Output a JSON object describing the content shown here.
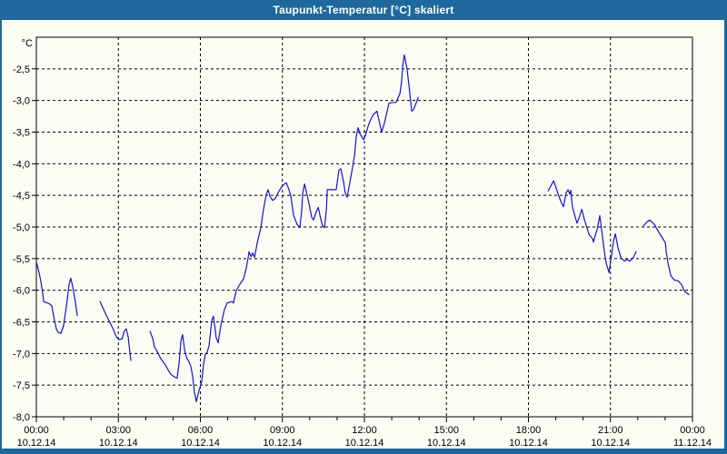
{
  "window": {
    "title": "Taupunkt-Temperatur [°C] skaliert"
  },
  "colors": {
    "titlebar": "#1e689e",
    "frame": "#1e689e",
    "background": "#fbfcf3",
    "line": "#1414cc",
    "grid": "#000000",
    "axis": "#000000",
    "text": "#000000"
  },
  "chart_data": {
    "type": "line",
    "title": "Taupunkt-Temperatur [°C] skaliert",
    "grid": "dashed",
    "legend": "none",
    "y_axis": {
      "unit": "°C",
      "min": -8.0,
      "max": -2.0,
      "ticks": [
        {
          "value": -2.5,
          "label": "-2,5"
        },
        {
          "value": -3.0,
          "label": "-3,0"
        },
        {
          "value": -3.5,
          "label": "-3,5"
        },
        {
          "value": -4.0,
          "label": "-4,0"
        },
        {
          "value": -4.5,
          "label": "-4,5"
        },
        {
          "value": -5.0,
          "label": "-5,0"
        },
        {
          "value": -5.5,
          "label": "-5,5"
        },
        {
          "value": -6.0,
          "label": "-6,0"
        },
        {
          "value": -6.5,
          "label": "-6,5"
        },
        {
          "value": -7.0,
          "label": "-7,0"
        },
        {
          "value": -7.5,
          "label": "-7,5"
        },
        {
          "value": -8.0,
          "label": "-8,0"
        }
      ]
    },
    "x_axis": {
      "range_hours": [
        0,
        24
      ],
      "minor_tick_hours": 1,
      "major_ticks": [
        {
          "hour": 0,
          "time": "00:00",
          "date": "10.12.14"
        },
        {
          "hour": 3,
          "time": "03:00",
          "date": "10.12.14"
        },
        {
          "hour": 6,
          "time": "06:00",
          "date": "10.12.14"
        },
        {
          "hour": 9,
          "time": "09:00",
          "date": "10.12.14"
        },
        {
          "hour": 12,
          "time": "12:00",
          "date": "10.12.14"
        },
        {
          "hour": 15,
          "time": "15:00",
          "date": "10.12.14"
        },
        {
          "hour": 18,
          "time": "18:00",
          "date": "10.12.14"
        },
        {
          "hour": 21,
          "time": "21:00",
          "date": "10.12.14"
        },
        {
          "hour": 24,
          "time": "00:00",
          "date": "11.12.14"
        }
      ]
    },
    "series": [
      {
        "name": "Taupunkt-Temperatur",
        "color": "#1414cc",
        "segments": [
          [
            [
              0.0,
              -5.55
            ],
            [
              0.1,
              -5.72
            ],
            [
              0.17,
              -5.87
            ],
            [
              0.23,
              -6.04
            ],
            [
              0.27,
              -6.18
            ],
            [
              0.4,
              -6.2
            ],
            [
              0.5,
              -6.22
            ],
            [
              0.57,
              -6.25
            ],
            [
              0.6,
              -6.33
            ],
            [
              0.66,
              -6.47
            ],
            [
              0.73,
              -6.61
            ],
            [
              0.8,
              -6.67
            ],
            [
              0.9,
              -6.68
            ],
            [
              1.0,
              -6.55
            ],
            [
              1.06,
              -6.37
            ],
            [
              1.13,
              -6.15
            ],
            [
              1.2,
              -5.9
            ],
            [
              1.26,
              -5.81
            ],
            [
              1.33,
              -5.94
            ],
            [
              1.4,
              -6.11
            ],
            [
              1.5,
              -6.4
            ]
          ],
          [
            [
              2.33,
              -6.18
            ],
            [
              2.46,
              -6.3
            ],
            [
              2.56,
              -6.4
            ],
            [
              2.66,
              -6.48
            ],
            [
              2.83,
              -6.63
            ],
            [
              2.93,
              -6.74
            ],
            [
              3.03,
              -6.78
            ],
            [
              3.13,
              -6.77
            ],
            [
              3.22,
              -6.64
            ],
            [
              3.29,
              -6.61
            ],
            [
              3.36,
              -6.74
            ],
            [
              3.42,
              -6.98
            ],
            [
              3.46,
              -7.11
            ]
          ],
          [
            [
              4.16,
              -6.65
            ],
            [
              4.26,
              -6.77
            ],
            [
              4.32,
              -6.9
            ],
            [
              4.42,
              -6.97
            ],
            [
              4.55,
              -7.08
            ],
            [
              4.72,
              -7.18
            ],
            [
              4.82,
              -7.26
            ],
            [
              4.92,
              -7.33
            ],
            [
              5.05,
              -7.37
            ],
            [
              5.15,
              -7.39
            ],
            [
              5.22,
              -7.16
            ],
            [
              5.29,
              -6.8
            ],
            [
              5.35,
              -6.7
            ],
            [
              5.42,
              -6.94
            ],
            [
              5.49,
              -7.06
            ],
            [
              5.58,
              -7.13
            ],
            [
              5.65,
              -7.2
            ],
            [
              5.72,
              -7.37
            ],
            [
              5.78,
              -7.61
            ],
            [
              5.85,
              -7.76
            ],
            [
              5.92,
              -7.64
            ],
            [
              5.98,
              -7.54
            ],
            [
              6.05,
              -7.44
            ],
            [
              6.12,
              -7.16
            ],
            [
              6.18,
              -7.01
            ],
            [
              6.25,
              -6.98
            ],
            [
              6.32,
              -6.87
            ],
            [
              6.42,
              -6.47
            ],
            [
              6.48,
              -6.41
            ],
            [
              6.58,
              -6.75
            ],
            [
              6.65,
              -6.83
            ],
            [
              6.75,
              -6.55
            ],
            [
              6.88,
              -6.3
            ],
            [
              6.98,
              -6.2
            ],
            [
              7.15,
              -6.18
            ],
            [
              7.21,
              -6.2
            ],
            [
              7.31,
              -6.01
            ],
            [
              7.45,
              -5.9
            ],
            [
              7.58,
              -5.82
            ],
            [
              7.68,
              -5.65
            ],
            [
              7.75,
              -5.48
            ],
            [
              7.78,
              -5.39
            ],
            [
              7.85,
              -5.47
            ],
            [
              7.91,
              -5.41
            ],
            [
              7.98,
              -5.48
            ],
            [
              8.08,
              -5.25
            ],
            [
              8.21,
              -5.01
            ],
            [
              8.31,
              -4.72
            ],
            [
              8.41,
              -4.48
            ],
            [
              8.48,
              -4.41
            ],
            [
              8.54,
              -4.51
            ],
            [
              8.64,
              -4.58
            ],
            [
              8.74,
              -4.55
            ],
            [
              8.84,
              -4.46
            ],
            [
              8.98,
              -4.36
            ],
            [
              9.08,
              -4.32
            ],
            [
              9.14,
              -4.3
            ],
            [
              9.24,
              -4.41
            ],
            [
              9.31,
              -4.51
            ],
            [
              9.41,
              -4.82
            ],
            [
              9.54,
              -4.96
            ],
            [
              9.64,
              -5.01
            ],
            [
              9.71,
              -4.72
            ],
            [
              9.74,
              -4.48
            ],
            [
              9.81,
              -4.32
            ],
            [
              9.87,
              -4.43
            ],
            [
              9.97,
              -4.62
            ],
            [
              10.07,
              -4.84
            ],
            [
              10.14,
              -4.89
            ],
            [
              10.21,
              -4.79
            ],
            [
              10.31,
              -4.69
            ],
            [
              10.41,
              -4.89
            ],
            [
              10.47,
              -4.98
            ],
            [
              10.54,
              -5.01
            ],
            [
              10.61,
              -4.72
            ],
            [
              10.64,
              -4.41
            ],
            [
              10.8,
              -4.41
            ],
            [
              10.97,
              -4.41
            ],
            [
              11.07,
              -4.1
            ],
            [
              11.14,
              -4.08
            ],
            [
              11.24,
              -4.29
            ],
            [
              11.3,
              -4.46
            ],
            [
              11.37,
              -4.53
            ],
            [
              11.47,
              -4.29
            ],
            [
              11.54,
              -4.12
            ],
            [
              11.64,
              -3.86
            ],
            [
              11.7,
              -3.57
            ],
            [
              11.77,
              -3.43
            ],
            [
              11.83,
              -3.52
            ],
            [
              11.9,
              -3.57
            ],
            [
              11.97,
              -3.62
            ],
            [
              12.04,
              -3.55
            ],
            [
              12.14,
              -3.4
            ],
            [
              12.24,
              -3.29
            ],
            [
              12.33,
              -3.22
            ],
            [
              12.46,
              -3.17
            ],
            [
              12.56,
              -3.36
            ],
            [
              12.63,
              -3.5
            ],
            [
              12.73,
              -3.36
            ],
            [
              12.83,
              -3.17
            ],
            [
              12.9,
              -3.04
            ],
            [
              13.03,
              -3.03
            ],
            [
              13.16,
              -3.03
            ],
            [
              13.23,
              -2.96
            ],
            [
              13.3,
              -2.89
            ],
            [
              13.36,
              -2.71
            ],
            [
              13.4,
              -2.46
            ],
            [
              13.46,
              -2.28
            ],
            [
              13.56,
              -2.5
            ],
            [
              13.63,
              -2.76
            ],
            [
              13.7,
              -3.03
            ],
            [
              13.73,
              -3.17
            ],
            [
              13.8,
              -3.14
            ],
            [
              13.9,
              -3.03
            ],
            [
              13.97,
              -2.95
            ]
          ],
          [
            [
              18.72,
              -4.43
            ],
            [
              18.82,
              -4.35
            ],
            [
              18.92,
              -4.27
            ],
            [
              19.05,
              -4.43
            ],
            [
              19.11,
              -4.51
            ],
            [
              19.21,
              -4.62
            ],
            [
              19.28,
              -4.68
            ],
            [
              19.38,
              -4.46
            ],
            [
              19.45,
              -4.41
            ],
            [
              19.51,
              -4.48
            ],
            [
              19.55,
              -4.42
            ],
            [
              19.61,
              -4.68
            ],
            [
              19.71,
              -4.84
            ],
            [
              19.78,
              -4.94
            ],
            [
              19.85,
              -4.86
            ],
            [
              19.95,
              -4.72
            ],
            [
              20.05,
              -4.89
            ],
            [
              20.21,
              -5.11
            ],
            [
              20.35,
              -5.19
            ],
            [
              20.38,
              -5.24
            ],
            [
              20.45,
              -5.12
            ],
            [
              20.51,
              -5.05
            ],
            [
              20.61,
              -4.82
            ],
            [
              20.71,
              -5.15
            ],
            [
              20.78,
              -5.39
            ],
            [
              20.85,
              -5.58
            ],
            [
              20.95,
              -5.72
            ],
            [
              21.04,
              -5.44
            ],
            [
              21.11,
              -5.22
            ],
            [
              21.18,
              -5.11
            ],
            [
              21.28,
              -5.34
            ],
            [
              21.38,
              -5.48
            ],
            [
              21.51,
              -5.54
            ],
            [
              21.61,
              -5.51
            ],
            [
              21.71,
              -5.54
            ],
            [
              21.84,
              -5.48
            ],
            [
              21.94,
              -5.39
            ]
          ],
          [
            [
              22.21,
              -4.98
            ],
            [
              22.34,
              -4.92
            ],
            [
              22.44,
              -4.89
            ],
            [
              22.61,
              -4.96
            ],
            [
              22.71,
              -5.04
            ],
            [
              22.87,
              -5.15
            ],
            [
              23.01,
              -5.25
            ],
            [
              23.04,
              -5.39
            ],
            [
              23.11,
              -5.58
            ],
            [
              23.21,
              -5.77
            ],
            [
              23.34,
              -5.84
            ],
            [
              23.47,
              -5.85
            ],
            [
              23.6,
              -5.91
            ],
            [
              23.7,
              -6.01
            ],
            [
              23.87,
              -6.07
            ]
          ]
        ]
      }
    ]
  }
}
